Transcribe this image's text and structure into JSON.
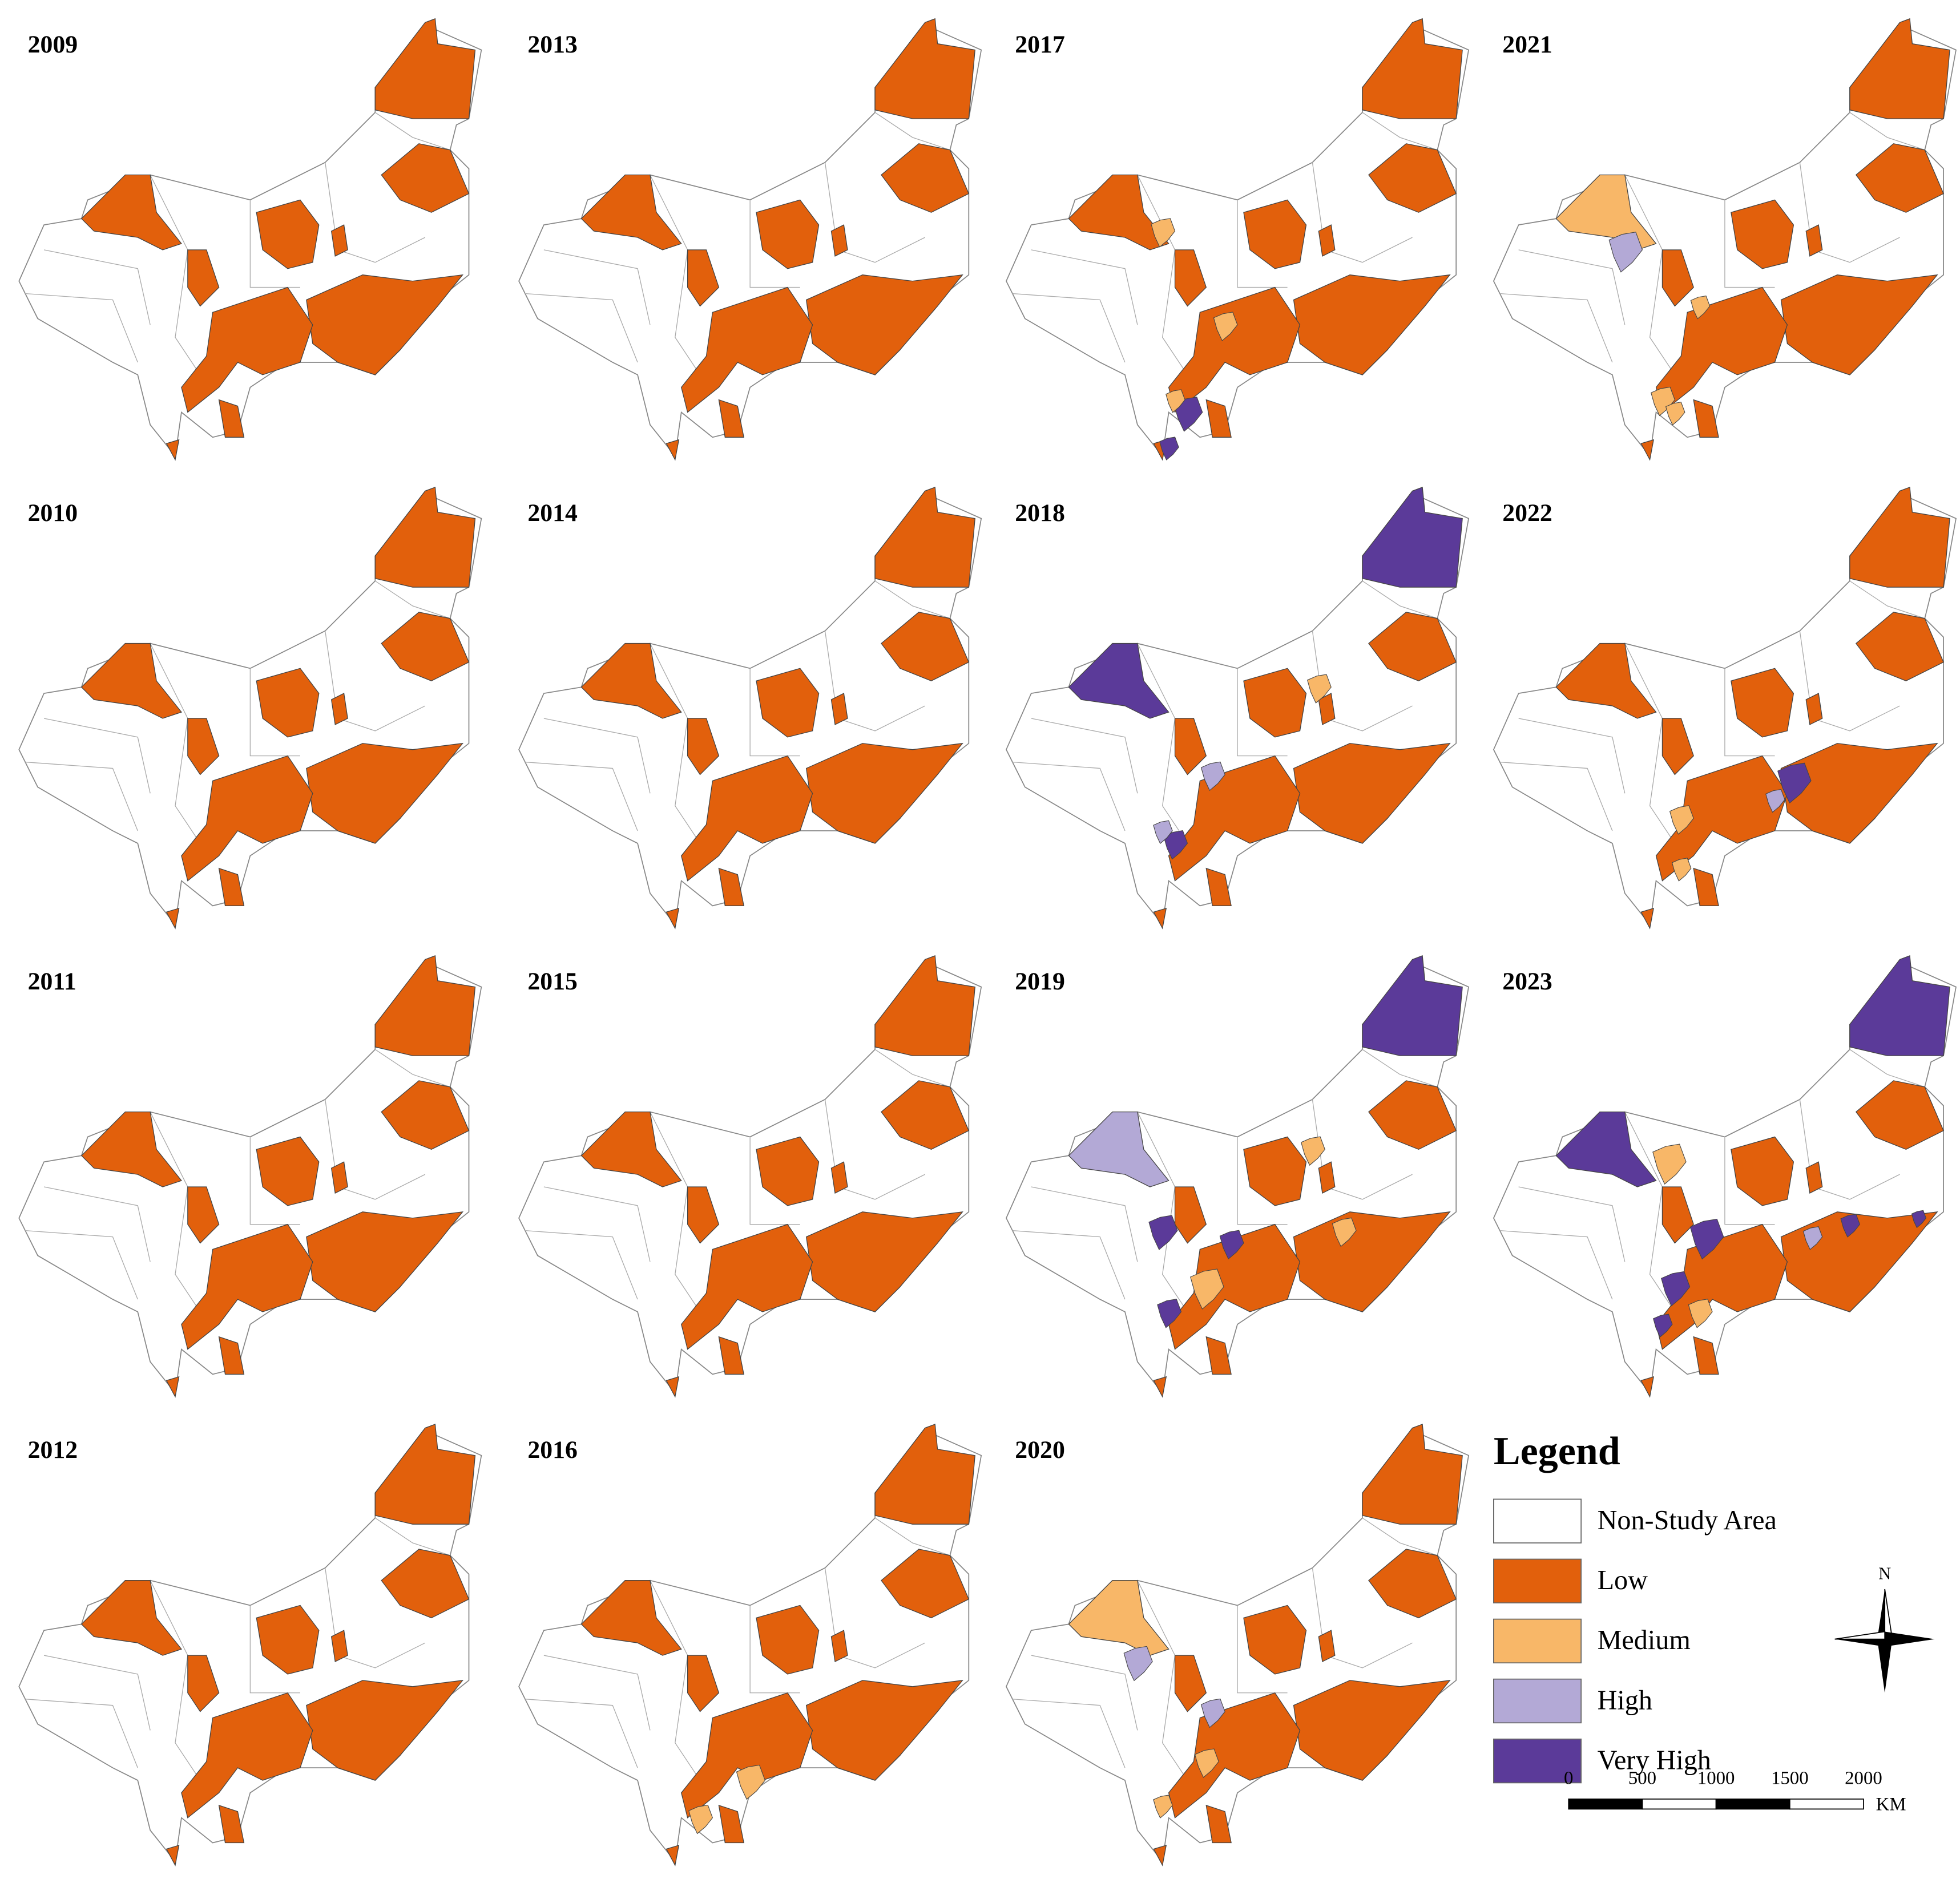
{
  "panels": [
    {
      "year": "2009"
    },
    {
      "year": "2010"
    },
    {
      "year": "2011"
    },
    {
      "year": "2012"
    },
    {
      "year": "2013"
    },
    {
      "year": "2014"
    },
    {
      "year": "2015"
    },
    {
      "year": "2016"
    },
    {
      "year": "2017"
    },
    {
      "year": "2018"
    },
    {
      "year": "2019"
    },
    {
      "year": "2020"
    },
    {
      "year": "2021"
    },
    {
      "year": "2022"
    },
    {
      "year": "2023"
    }
  ],
  "legend": {
    "title": "Legend",
    "items": [
      {
        "label": "Non-Study Area",
        "color": "#ffffff"
      },
      {
        "label": "Low",
        "color": "#e2600c"
      },
      {
        "label": "Medium",
        "color": "#f8b768"
      },
      {
        "label": "High",
        "color": "#b3a9d6"
      },
      {
        "label": "Very High",
        "color": "#5b3a99"
      }
    ]
  },
  "scale_bar": {
    "labels": [
      "0",
      "500",
      "1000",
      "1500",
      "2000"
    ],
    "unit": "KM"
  },
  "north": "N"
}
